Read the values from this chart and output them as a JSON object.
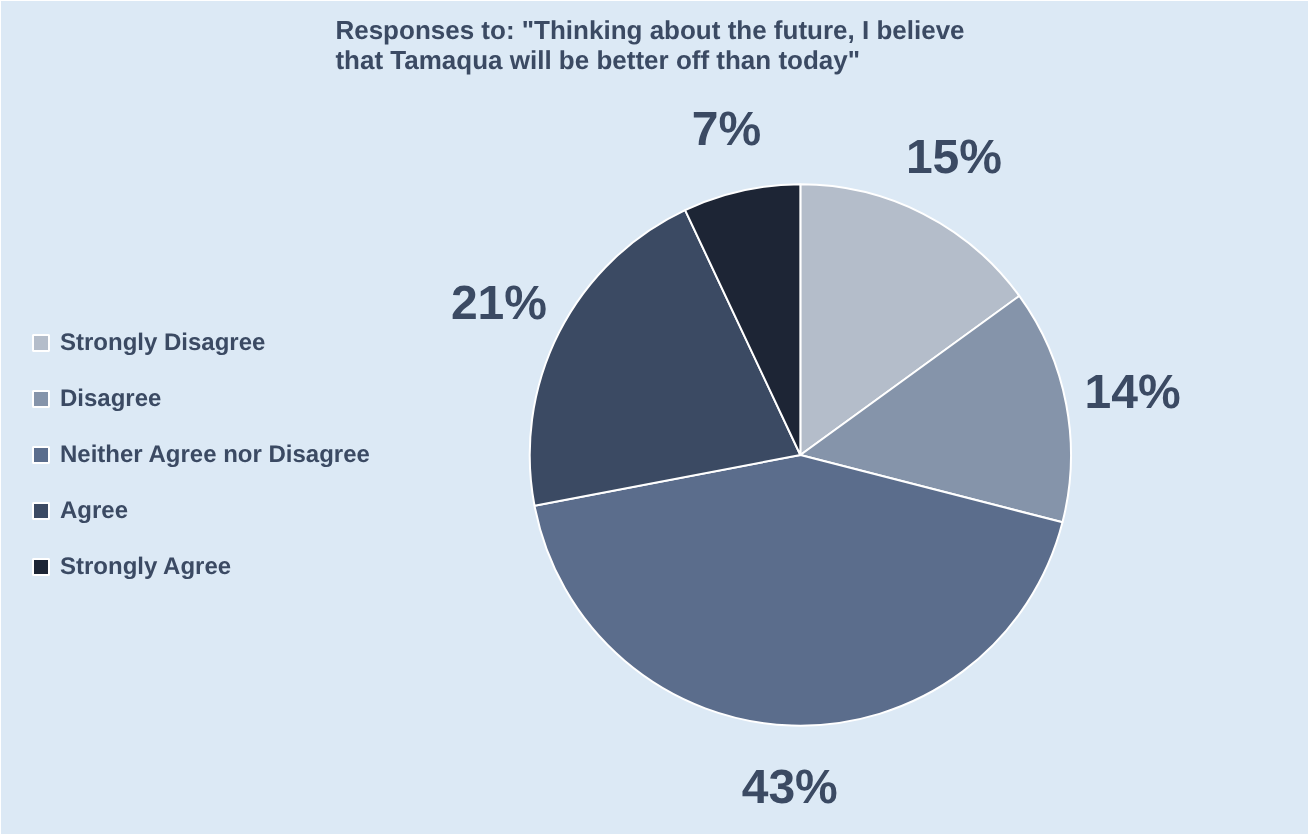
{
  "chart_data": {
    "type": "pie",
    "title": "Responses to: \"Thinking about the future, I believe that Tamaqua will be better off than today\"",
    "categories": [
      "Strongly Disagree",
      "Disagree",
      "Neither Agree nor Disagree",
      "Agree",
      "Strongly Agree"
    ],
    "values": [
      15,
      14,
      43,
      21,
      7
    ],
    "colors": [
      "#b4bdca",
      "#8594aa",
      "#5b6d8c",
      "#3b4a63",
      "#1d2535"
    ],
    "value_labels": [
      "15%",
      "14%",
      "43%",
      "21%",
      "7%"
    ],
    "legend": "left"
  }
}
